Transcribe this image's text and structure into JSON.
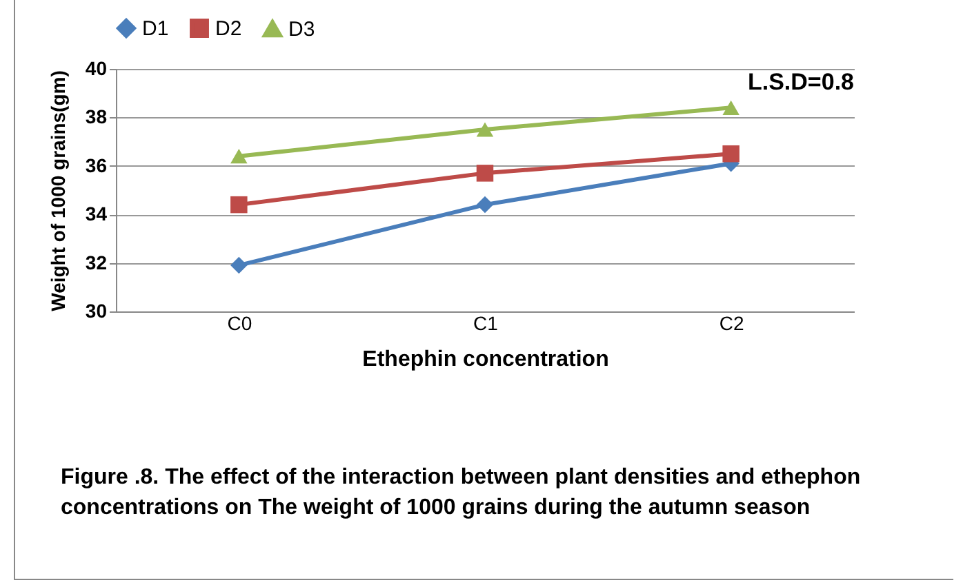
{
  "chart_data": {
    "type": "line",
    "xlabel": "Ethephin concentration",
    "ylabel": "Weight of 1000 grains(gm)",
    "categories": [
      "C0",
      "C1",
      "C2"
    ],
    "series": [
      {
        "name": "D1",
        "color": "#4a7ebb",
        "marker": "diamond",
        "values": [
          31.9,
          34.4,
          36.1
        ]
      },
      {
        "name": "D2",
        "color": "#be4b48",
        "marker": "square",
        "values": [
          34.4,
          35.7,
          36.5
        ]
      },
      {
        "name": "D3",
        "color": "#98b954",
        "marker": "triangle",
        "values": [
          36.4,
          37.5,
          38.4
        ]
      }
    ],
    "ylim": [
      30,
      40
    ],
    "yticks": [
      30,
      32,
      34,
      36,
      38,
      40
    ],
    "grid": "y",
    "legend": "top",
    "annotations": [
      "L.S.D=0.8",
      "Figure .8. The effect of the interaction between plant densities and ethephon concentrations on The weight of 1000 grains during the autumn season"
    ]
  }
}
